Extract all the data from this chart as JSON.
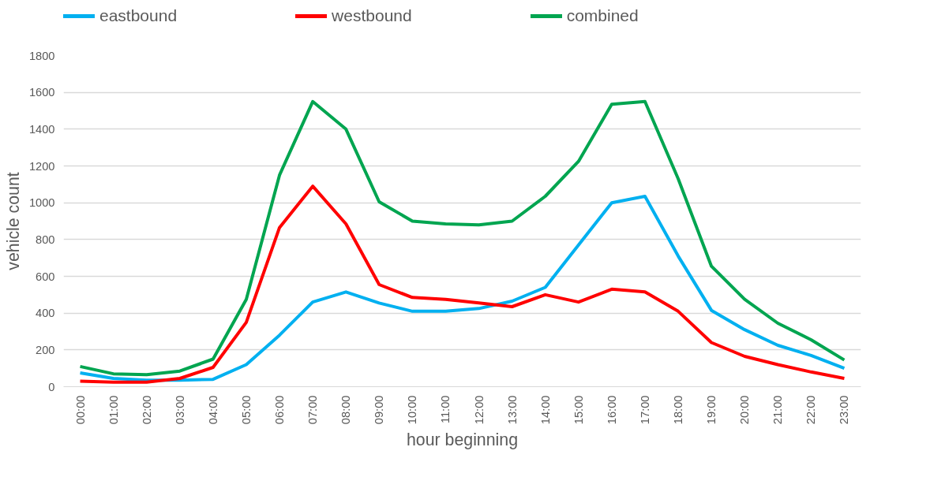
{
  "chart_data": {
    "type": "line",
    "xlabel": "hour beginning",
    "ylabel": "vehicle count",
    "categories": [
      "00:00",
      "01:00",
      "02:00",
      "03:00",
      "04:00",
      "05:00",
      "06:00",
      "07:00",
      "08:00",
      "09:00",
      "10:00",
      "11:00",
      "12:00",
      "13:00",
      "14:00",
      "15:00",
      "16:00",
      "17:00",
      "18:00",
      "19:00",
      "20:00",
      "21:00",
      "22:00",
      "23:00"
    ],
    "series": [
      {
        "name": "eastbound",
        "color": "#00b0f0",
        "values": [
          75,
          45,
          35,
          35,
          40,
          120,
          280,
          460,
          515,
          455,
          410,
          410,
          425,
          465,
          540,
          770,
          1000,
          1035,
          710,
          415,
          310,
          225,
          170,
          100
        ]
      },
      {
        "name": "westbound",
        "color": "#ff0000",
        "values": [
          30,
          25,
          25,
          45,
          105,
          350,
          865,
          1090,
          885,
          555,
          485,
          475,
          455,
          435,
          500,
          460,
          530,
          515,
          410,
          240,
          165,
          120,
          80,
          45
        ]
      },
      {
        "name": "combined",
        "color": "#00a550",
        "values": [
          110,
          70,
          65,
          85,
          150,
          475,
          1150,
          1550,
          1400,
          1005,
          900,
          885,
          880,
          900,
          1035,
          1225,
          1535,
          1550,
          1130,
          655,
          475,
          345,
          255,
          145
        ]
      }
    ],
    "ylim": [
      0,
      1800
    ],
    "yticks": [
      0,
      200,
      400,
      600,
      800,
      1000,
      1200,
      1400,
      1600,
      1800
    ],
    "grid": "y",
    "legend": "top",
    "marker": "none",
    "line_style": "solid"
  }
}
